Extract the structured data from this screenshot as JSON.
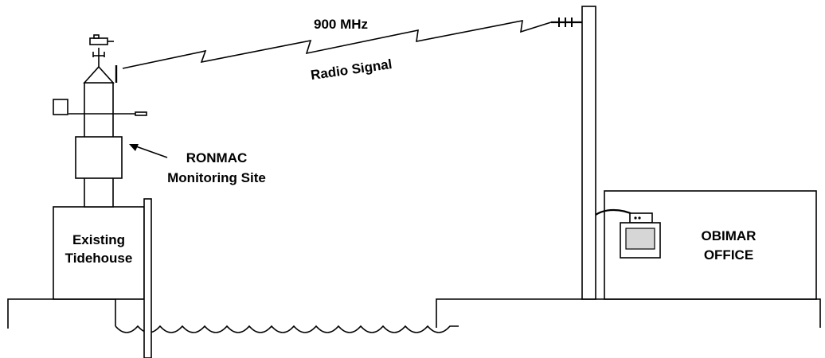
{
  "diagram": {
    "signal": {
      "frequency": "900 MHz",
      "type": "Radio Signal"
    },
    "monitoring_site": {
      "line1": "RONMAC",
      "line2": "Monitoring Site"
    },
    "tidehouse": {
      "line1": "Existing",
      "line2": "Tidehouse"
    },
    "office": {
      "line1": "OBIMAR",
      "line2": "OFFICE"
    }
  }
}
